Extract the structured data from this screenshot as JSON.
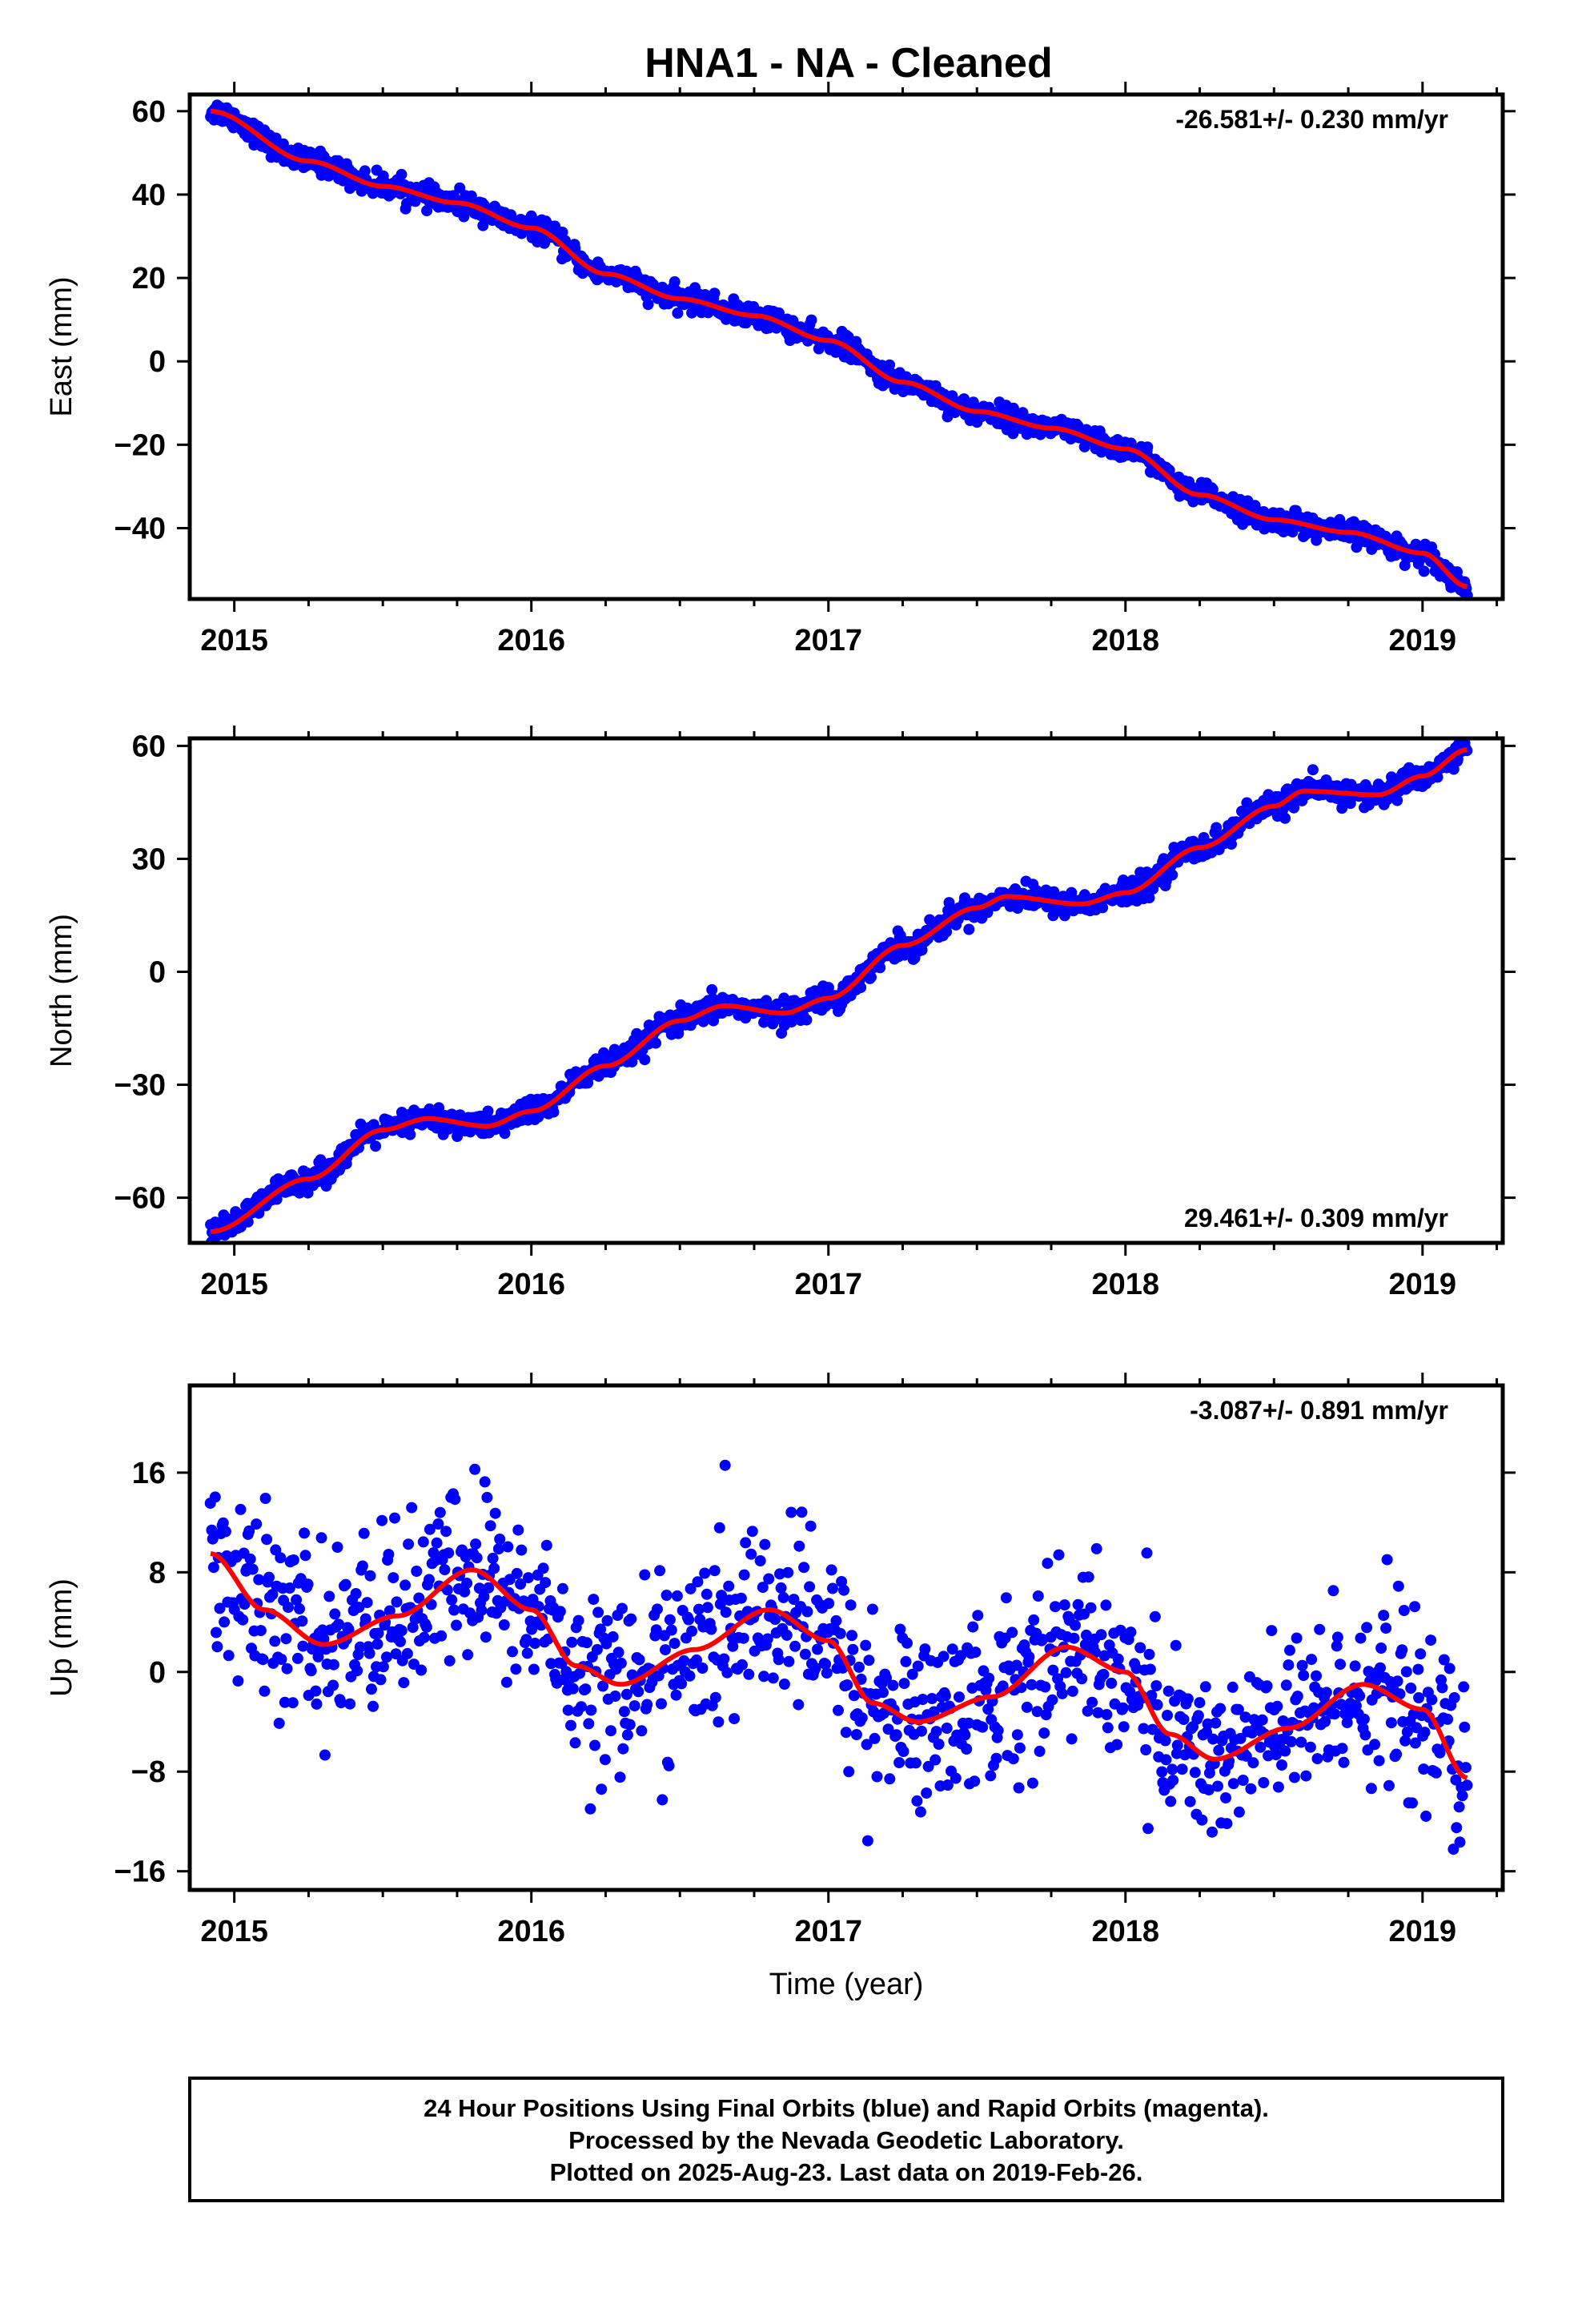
{
  "title": "HNA1  - NA - Cleaned",
  "footer": {
    "line1": "24 Hour Positions Using Final Orbits (blue) and Rapid Orbits (magenta).",
    "line2": "Processed by the Nevada Geodetic Laboratory.",
    "line3": "Plotted on 2025-Aug-23. Last data on 2019-Feb-26."
  },
  "colors": {
    "points": "#0000ff",
    "model": "#ff0000",
    "axes": "#000000"
  },
  "chart_data": [
    {
      "type": "scatter",
      "ylabel": "East (mm)",
      "xlabel": "",
      "rate_label": "-26.581+/- 0.230 mm/yr",
      "rate_position": "top-right",
      "xlim": [
        2014.85,
        2019.27
      ],
      "ylim": [
        -57,
        64
      ],
      "xticks": [
        2015,
        2016,
        2017,
        2018,
        2019
      ],
      "yticks": [
        -40,
        -20,
        0,
        20,
        40,
        60
      ],
      "x_range_data": [
        2014.92,
        2019.15
      ],
      "model": {
        "x": [
          2014.92,
          2015.25,
          2015.5,
          2015.75,
          2016.0,
          2016.25,
          2016.5,
          2016.75,
          2017.0,
          2017.25,
          2017.5,
          2017.75,
          2018.0,
          2018.25,
          2018.5,
          2018.75,
          2019.0,
          2019.15
        ],
        "y": [
          60,
          48,
          42,
          38,
          32,
          21,
          15,
          11,
          5,
          -5,
          -12,
          -16,
          -21,
          -32,
          -38,
          -41,
          -46,
          -54
        ]
      },
      "noise_mm": 1.3,
      "n_points": 1500
    },
    {
      "type": "scatter",
      "ylabel": "North (mm)",
      "xlabel": "",
      "rate_label": "29.461+/- 0.309 mm/yr",
      "rate_position": "bottom-right",
      "xlim": [
        2014.85,
        2019.27
      ],
      "ylim": [
        -72,
        62
      ],
      "xticks": [
        2015,
        2016,
        2017,
        2018,
        2019
      ],
      "yticks": [
        -60,
        -30,
        0,
        30,
        60
      ],
      "x_range_data": [
        2014.92,
        2019.15
      ],
      "model": {
        "x": [
          2014.92,
          2015.25,
          2015.5,
          2015.65,
          2015.85,
          2016.0,
          2016.25,
          2016.5,
          2016.65,
          2016.85,
          2017.0,
          2017.25,
          2017.5,
          2017.6,
          2017.85,
          2018.0,
          2018.25,
          2018.5,
          2018.6,
          2018.85,
          2019.0,
          2019.15
        ],
        "y": [
          -69,
          -55,
          -42,
          -39,
          -41,
          -37,
          -25,
          -13,
          -9,
          -11,
          -7,
          7,
          17,
          20,
          18,
          21,
          33,
          44,
          48,
          47,
          52,
          59
        ]
      },
      "noise_mm": 1.6,
      "n_points": 1500
    },
    {
      "type": "scatter",
      "ylabel": "Up (mm)",
      "xlabel": "Time (year)",
      "rate_label": "-3.087+/- 0.891 mm/yr",
      "rate_position": "top-right",
      "xlim": [
        2014.85,
        2019.27
      ],
      "ylim": [
        -17.5,
        23
      ],
      "xticks": [
        2015,
        2016,
        2017,
        2018,
        2019
      ],
      "yticks": [
        -16,
        -8,
        0,
        8,
        16
      ],
      "x_range_data": [
        2014.92,
        2019.15
      ],
      "model": {
        "x": [
          2014.92,
          2015.1,
          2015.3,
          2015.55,
          2015.8,
          2016.0,
          2016.15,
          2016.3,
          2016.55,
          2016.8,
          2017.0,
          2017.15,
          2017.3,
          2017.55,
          2017.8,
          2018.0,
          2018.15,
          2018.3,
          2018.55,
          2018.8,
          2019.0,
          2019.15
        ],
        "y": [
          9.5,
          5,
          2.2,
          4.5,
          8.2,
          5,
          0.5,
          -1,
          1.8,
          5,
          2.5,
          -2.5,
          -4,
          -2,
          2,
          0,
          -5,
          -7,
          -4.5,
          -1,
          -3,
          -8.5
        ]
      },
      "noise_mm": 3.6,
      "n_points": 1100
    }
  ]
}
